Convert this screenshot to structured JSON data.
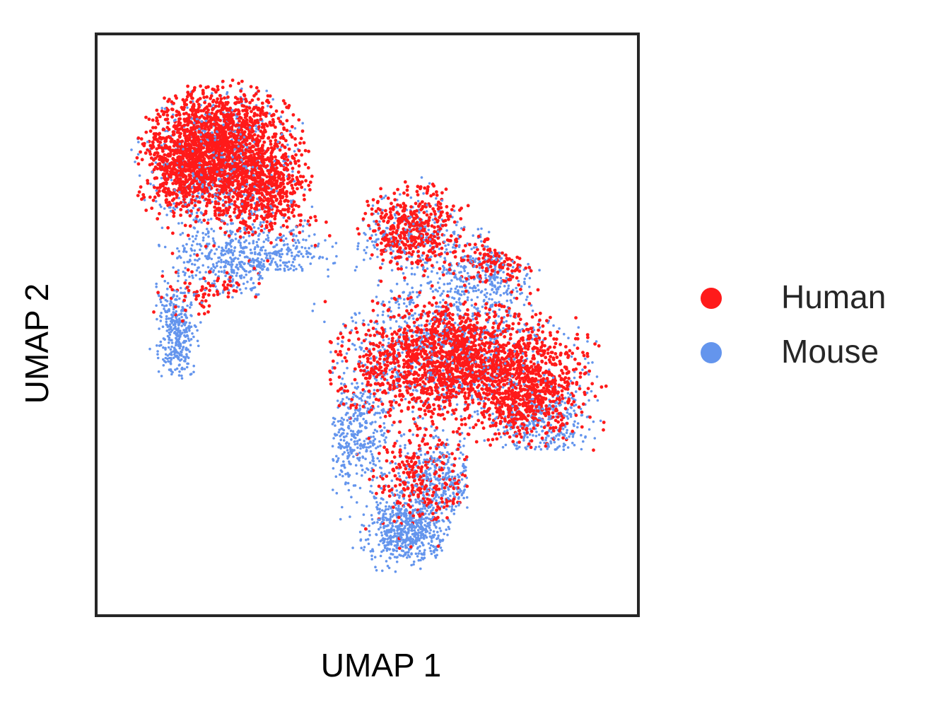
{
  "chart_data": {
    "type": "scatter",
    "title": "",
    "xlabel": "UMAP 1",
    "ylabel": "UMAP 2",
    "xlim": [
      0,
      10
    ],
    "ylim": [
      0,
      10
    ],
    "x_ticks": false,
    "y_ticks": false,
    "grid": false,
    "legend_position": "right",
    "series": [
      {
        "name": "Human",
        "color": "#ff1a1a",
        "clusters": [
          {
            "cx": 2.0,
            "cy": 8.2,
            "sx": 1.15,
            "sy": 0.95,
            "n": 1900
          },
          {
            "cx": 1.3,
            "cy": 7.9,
            "sx": 0.55,
            "sy": 0.55,
            "n": 250
          },
          {
            "cx": 3.0,
            "cy": 7.5,
            "sx": 0.7,
            "sy": 0.6,
            "n": 350
          },
          {
            "cx": 5.9,
            "cy": 6.8,
            "sx": 0.75,
            "sy": 0.55,
            "n": 420
          },
          {
            "cx": 7.6,
            "cy": 6.2,
            "sx": 0.6,
            "sy": 0.35,
            "n": 120
          },
          {
            "cx": 6.7,
            "cy": 4.3,
            "sx": 1.7,
            "sy": 0.85,
            "n": 1700
          },
          {
            "cx": 8.2,
            "cy": 3.7,
            "sx": 0.85,
            "sy": 0.7,
            "n": 550
          },
          {
            "cx": 6.1,
            "cy": 2.1,
            "sx": 0.75,
            "sy": 0.75,
            "n": 260
          },
          {
            "cx": 2.0,
            "cy": 5.6,
            "sx": 0.9,
            "sy": 0.4,
            "n": 80
          }
        ]
      },
      {
        "name": "Mouse",
        "color": "#6495ed",
        "clusters": [
          {
            "cx": 2.1,
            "cy": 8.0,
            "sx": 1.25,
            "sy": 1.1,
            "n": 650
          },
          {
            "cx": 2.6,
            "cy": 6.2,
            "sx": 1.25,
            "sy": 0.55,
            "n": 450
          },
          {
            "cx": 1.2,
            "cy": 4.8,
            "sx": 0.3,
            "sy": 0.8,
            "n": 300
          },
          {
            "cx": 5.9,
            "cy": 6.6,
            "sx": 0.9,
            "sy": 0.7,
            "n": 220
          },
          {
            "cx": 7.3,
            "cy": 5.9,
            "sx": 0.85,
            "sy": 0.6,
            "n": 260
          },
          {
            "cx": 6.6,
            "cy": 4.5,
            "sx": 1.75,
            "sy": 0.95,
            "n": 750
          },
          {
            "cx": 8.5,
            "cy": 3.2,
            "sx": 0.75,
            "sy": 0.65,
            "n": 300
          },
          {
            "cx": 4.8,
            "cy": 3.0,
            "sx": 0.6,
            "sy": 0.8,
            "n": 320
          },
          {
            "cx": 5.8,
            "cy": 1.2,
            "sx": 0.65,
            "sy": 0.45,
            "n": 520
          },
          {
            "cx": 6.4,
            "cy": 2.1,
            "sx": 0.7,
            "sy": 0.6,
            "n": 300
          }
        ]
      }
    ]
  }
}
